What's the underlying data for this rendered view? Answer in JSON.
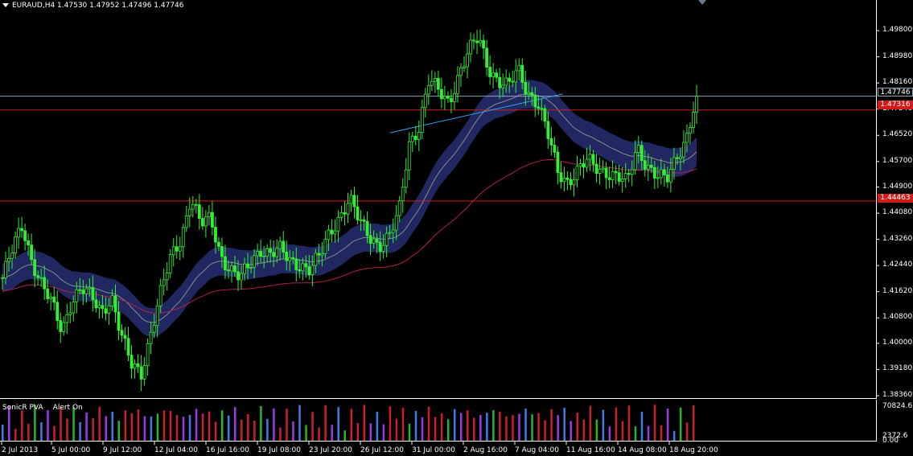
{
  "window": {
    "symbol_header": "EURAUD,H4  1.47530 1.47952 1.47496 1.47746",
    "indicator_label": "SonicR PVA",
    "alert_label": "Alert On"
  },
  "price_axis": {
    "ticks": [
      "1.49800",
      "1.48980",
      "1.48160",
      "1.47340",
      "1.46520",
      "1.45700",
      "1.44900",
      "1.44080",
      "1.43260",
      "1.42440",
      "1.41620",
      "1.40800",
      "1.40000",
      "1.39180",
      "1.38360"
    ],
    "current_price": "1.47746",
    "upper_level": "1.47316",
    "lower_level": "1.44463"
  },
  "volume_axis": {
    "max_label": "70824.6",
    "min_label": "2372.6",
    "zero_label": "0.00"
  },
  "time_axis": {
    "ticks": [
      "2 Jul 2013",
      "5 Jul 00:00",
      "9 Jul 12:00",
      "12 Jul 04:00",
      "16 Jul 16:00",
      "19 Jul 08:00",
      "23 Jul 20:00",
      "26 Jul 12:00",
      "31 Jul 00:00",
      "2 Aug 16:00",
      "7 Aug 04:00",
      "11 Aug 16:00",
      "14 Aug 08:00",
      "18 Aug 20:00"
    ]
  },
  "chart_data": {
    "type": "candlestick",
    "symbol": "EURAUD",
    "timeframe": "H4",
    "ohlc": {
      "open": 1.4753,
      "high": 1.47952,
      "low": 1.47496,
      "close": 1.47746
    },
    "ylim": [
      1.3836,
      1.4998
    ],
    "horizontal_lines": [
      {
        "name": "current",
        "value": 1.47746,
        "color": "#8fa3b8"
      },
      {
        "name": "resistance",
        "value": 1.47316,
        "color": "#d11a1a"
      },
      {
        "name": "support",
        "value": 1.44463,
        "color": "#d11a1a"
      }
    ],
    "close_path": [
      1.4205,
      1.429,
      1.437,
      1.426,
      1.418,
      1.412,
      1.404,
      1.414,
      1.417,
      1.414,
      1.41,
      1.415,
      1.402,
      1.393,
      1.391,
      1.404,
      1.416,
      1.427,
      1.433,
      1.446,
      1.437,
      1.439,
      1.428,
      1.423,
      1.42,
      1.425,
      1.43,
      1.428,
      1.429,
      1.426,
      1.425,
      1.423,
      1.427,
      1.435,
      1.44,
      1.445,
      1.438,
      1.434,
      1.431,
      1.433,
      1.441,
      1.463,
      1.468,
      1.482,
      1.479,
      1.476,
      1.484,
      1.491,
      1.496,
      1.487,
      1.482,
      1.48,
      1.486,
      1.479,
      1.475,
      1.465,
      1.454,
      1.451,
      1.454,
      1.457,
      1.455,
      1.454,
      1.452,
      1.45,
      1.462,
      1.456,
      1.452,
      1.451,
      1.459,
      1.465,
      1.477
    ],
    "colors": {
      "candle": "#33ee33",
      "band": "#232a66",
      "band_mid": "#8a8a8a",
      "ma": "#b2204a",
      "trendline": "#2aa4e8"
    },
    "volume_colors": [
      "#3a7ee6",
      "#2bb32b",
      "#9a3ae6",
      "#cc1f2a"
    ]
  }
}
